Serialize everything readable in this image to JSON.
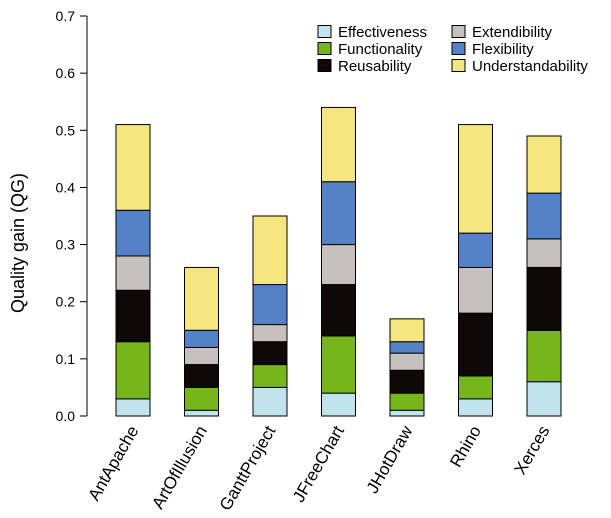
{
  "chart_data": {
    "type": "bar",
    "stacked": true,
    "ylabel": "Quality gain (QG)",
    "xlabel": "",
    "ylim": [
      0,
      0.7
    ],
    "yticks": [
      "0.0",
      "0.1",
      "0.2",
      "0.3",
      "0.4",
      "0.5",
      "0.6",
      "0.7"
    ],
    "grid": false,
    "legend_position": "top-right",
    "categories": [
      "AntApache",
      "ArtOfIllusion",
      "GanttProject",
      "JFreeChart",
      "JHotDraw",
      "Rhino",
      "Xerces"
    ],
    "series": [
      {
        "name": "Effectiveness",
        "color": "#c1e3ec",
        "values": [
          0.03,
          0.01,
          0.05,
          0.04,
          0.01,
          0.03,
          0.06
        ]
      },
      {
        "name": "Functionality",
        "color": "#76b51c",
        "values": [
          0.1,
          0.04,
          0.04,
          0.1,
          0.03,
          0.04,
          0.09
        ]
      },
      {
        "name": "Reusability",
        "color": "#100708",
        "values": [
          0.09,
          0.04,
          0.04,
          0.09,
          0.04,
          0.11,
          0.11
        ]
      },
      {
        "name": "Extendibility",
        "color": "#c6c0bf",
        "values": [
          0.06,
          0.03,
          0.03,
          0.07,
          0.03,
          0.08,
          0.05
        ]
      },
      {
        "name": "Flexibility",
        "color": "#5481c8",
        "values": [
          0.08,
          0.03,
          0.07,
          0.11,
          0.02,
          0.06,
          0.08
        ]
      },
      {
        "name": "Understandability",
        "color": "#f5e680",
        "values": [
          0.15,
          0.11,
          0.12,
          0.13,
          0.04,
          0.19,
          0.1
        ]
      }
    ],
    "legend_layout": [
      [
        "Effectiveness",
        "Extendibility"
      ],
      [
        "Functionality",
        "Flexibility"
      ],
      [
        "Reusability",
        "Understandability"
      ]
    ]
  }
}
